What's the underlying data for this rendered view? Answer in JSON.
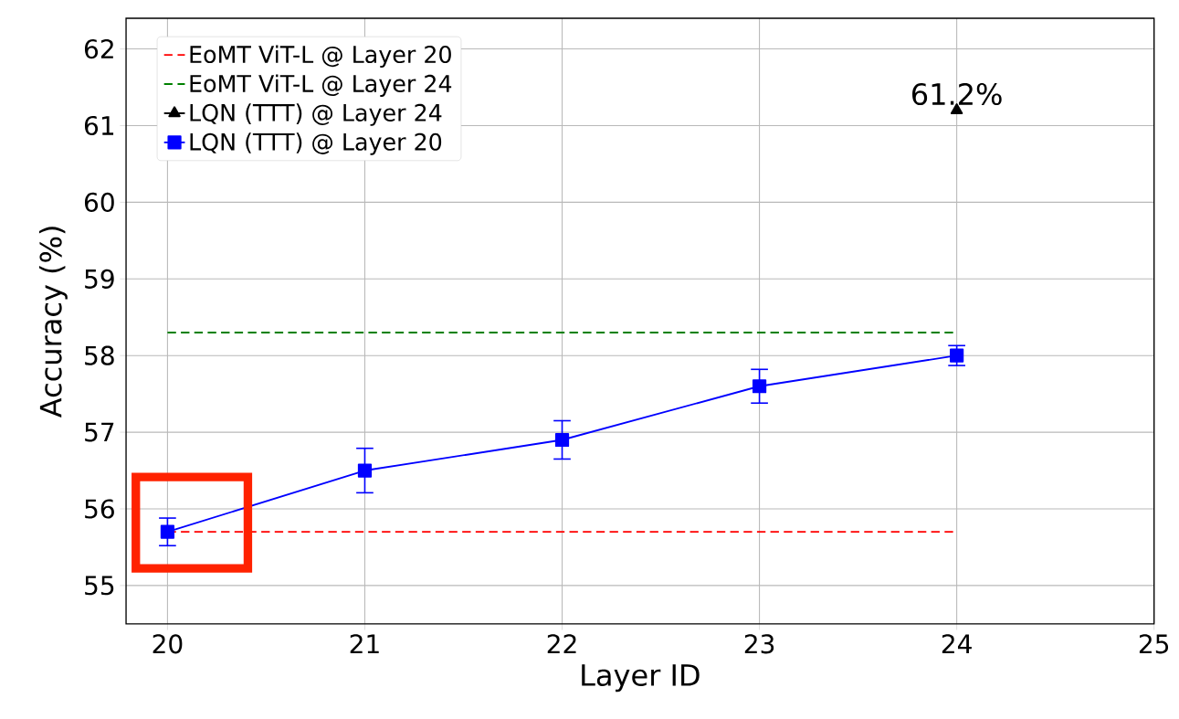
{
  "chart_data": {
    "type": "line",
    "xlabel": "Layer ID",
    "ylabel": "Accuracy (%)",
    "xlim": [
      19.79,
      25
    ],
    "ylim": [
      54.5,
      62.4
    ],
    "xticks": [
      20,
      21,
      22,
      23,
      24,
      25
    ],
    "yticks": [
      55,
      56,
      57,
      58,
      59,
      60,
      61,
      62
    ],
    "grid": true,
    "legend": "top left",
    "series": [
      {
        "name": "EoMT ViT-L @ Layer 20",
        "color": "#ff0000",
        "x": [
          20,
          24
        ],
        "values": [
          55.7,
          55.7
        ],
        "line_style": "dashed",
        "marker": "none"
      },
      {
        "name": "EoMT ViT-L @ Layer 24",
        "color": "#008000",
        "x": [
          20,
          24
        ],
        "values": [
          58.3,
          58.3
        ],
        "line_style": "dashed",
        "marker": "none"
      },
      {
        "name": "LQN (TTT) @ Layer 24",
        "color": "#000000",
        "x": [
          24
        ],
        "values": [
          61.2
        ],
        "line_style": "solid",
        "marker": "triangle",
        "value_labels": [
          "61.2%"
        ]
      },
      {
        "name": "LQN (TTT) @ Layer 20",
        "color": "#0000ff",
        "x": [
          20,
          21,
          22,
          23,
          24
        ],
        "values": [
          55.7,
          56.5,
          56.9,
          57.6,
          58.0
        ],
        "errors": [
          0.18,
          0.29,
          0.25,
          0.22,
          0.13
        ],
        "line_style": "solid",
        "marker": "square"
      }
    ]
  }
}
